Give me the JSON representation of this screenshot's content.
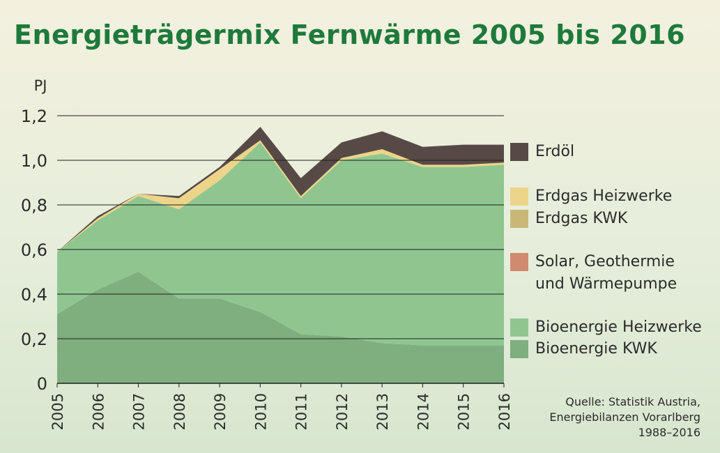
{
  "chart_data": {
    "type": "area",
    "title": "Energieträgermix Fernwärme 2005 bis 2016",
    "ylabel": "PJ",
    "ylim": [
      0,
      1.2
    ],
    "yticks": [
      "0",
      "0,2",
      "0,4",
      "0,6",
      "0,8",
      "1,0",
      "1,2"
    ],
    "x": [
      "2005",
      "2006",
      "2007",
      "2008",
      "2009",
      "2010",
      "2011",
      "2012",
      "2013",
      "2014",
      "2015",
      "2016"
    ],
    "stacked": true,
    "grid": true,
    "legend_position": "right",
    "series": [
      {
        "name": "Bioenergie KWK",
        "color": "#7fae7f",
        "values": [
          0.31,
          0.42,
          0.5,
          0.38,
          0.38,
          0.32,
          0.22,
          0.21,
          0.18,
          0.17,
          0.17,
          0.17
        ]
      },
      {
        "name": "Bioenergie Heizwerke",
        "color": "#8fc690",
        "values": [
          0.28,
          0.31,
          0.34,
          0.4,
          0.53,
          0.76,
          0.61,
          0.79,
          0.85,
          0.8,
          0.8,
          0.81
        ]
      },
      {
        "name": "Solar, Geothermie\nund Wärmepumpe",
        "color": "#d08a6e",
        "values": [
          0.0,
          0.0,
          0.0,
          0.0,
          0.0,
          0.0,
          0.0,
          0.0,
          0.0,
          0.0,
          0.0,
          0.0
        ]
      },
      {
        "name": "Erdgas KWK",
        "color": "#c8b877",
        "values": [
          0.0,
          0.0,
          0.0,
          0.0,
          0.0,
          0.0,
          0.0,
          0.0,
          0.0,
          0.0,
          0.0,
          0.0
        ]
      },
      {
        "name": "Erdgas Heizwerke",
        "color": "#ecd48a",
        "values": [
          0.0,
          0.01,
          0.01,
          0.05,
          0.05,
          0.01,
          0.01,
          0.01,
          0.02,
          0.01,
          0.01,
          0.01
        ]
      },
      {
        "name": "Erdöl",
        "color": "#574a46",
        "values": [
          0.0,
          0.01,
          0.0,
          0.01,
          0.01,
          0.06,
          0.08,
          0.07,
          0.08,
          0.08,
          0.09,
          0.08
        ]
      }
    ]
  },
  "legend": [
    {
      "label": "Erdöl",
      "color": "#574a46"
    },
    {
      "label": "Erdgas Heizwerke",
      "color": "#ecd48a"
    },
    {
      "label": "Erdgas KWK",
      "color": "#c8b877"
    },
    {
      "label": "Solar, Geothermie\nund Wärmepumpe",
      "color": "#d08a6e"
    },
    {
      "label": "Bioenergie Heizwerke",
      "color": "#8fc690"
    },
    {
      "label": "Bioenergie KWK",
      "color": "#7fae7f"
    }
  ],
  "source": "Quelle: Statistik Austria,\nEnergiebilanzen Vorarlberg\n1988–2016",
  "colors": {
    "title": "#1e7a3c",
    "grid": "#1f1f1f",
    "text": "#2b2b2b"
  }
}
